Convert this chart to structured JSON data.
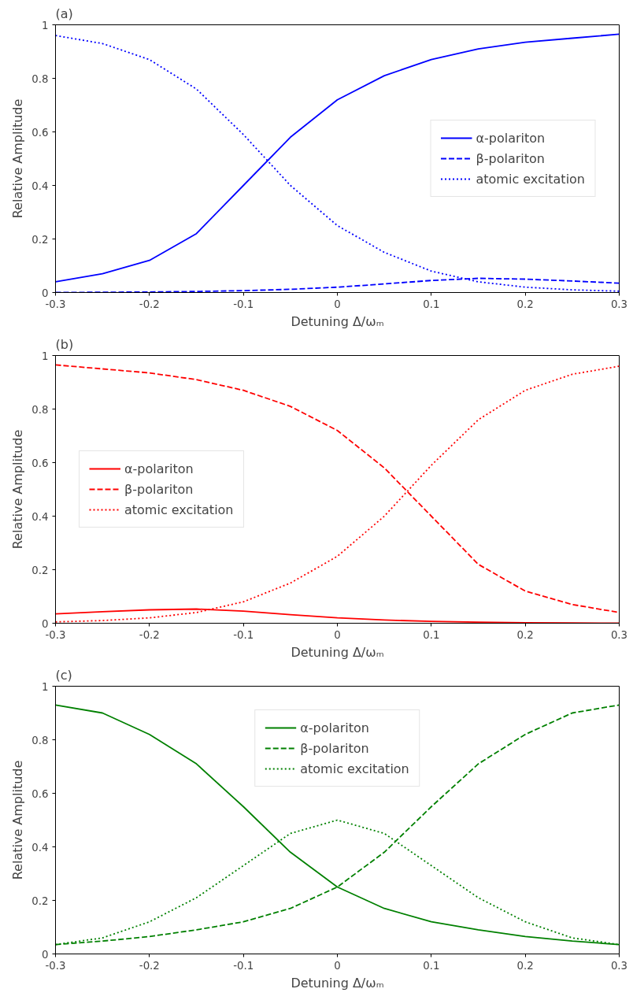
{
  "chart_data": [
    {
      "type": "line",
      "title": "(a)",
      "xlabel": "Detuning Δ/ωₘ",
      "ylabel": "Relative Amplitude",
      "x": [
        -0.3,
        -0.25,
        -0.2,
        -0.15,
        -0.1,
        -0.05,
        0,
        0.05,
        0.1,
        0.15,
        0.2,
        0.25,
        0.3
      ],
      "xlim": [
        -0.3,
        0.3
      ],
      "ylim": [
        0,
        1
      ],
      "xticks": [
        -0.3,
        -0.2,
        -0.1,
        0,
        0.1,
        0.2,
        0.3
      ],
      "yticks": [
        0,
        0.2,
        0.4,
        0.6,
        0.8,
        1
      ],
      "grid": false,
      "legend": "right",
      "series": [
        {
          "name": "α-polariton",
          "color": "#0000ff",
          "line_style": "solid",
          "values": [
            0.04,
            0.07,
            0.12,
            0.22,
            0.4,
            0.58,
            0.72,
            0.81,
            0.87,
            0.91,
            0.935,
            0.95,
            0.965
          ]
        },
        {
          "name": "β-polariton",
          "color": "#0000ff",
          "line_style": "dashed",
          "values": [
            0.0,
            0.001,
            0.002,
            0.004,
            0.007,
            0.012,
            0.02,
            0.032,
            0.045,
            0.053,
            0.05,
            0.043,
            0.035
          ]
        },
        {
          "name": "atomic excitation",
          "color": "#0000ff",
          "line_style": "dotted",
          "values": [
            0.96,
            0.93,
            0.87,
            0.76,
            0.59,
            0.4,
            0.25,
            0.15,
            0.08,
            0.04,
            0.02,
            0.01,
            0.005
          ]
        }
      ]
    },
    {
      "type": "line",
      "title": "(b)",
      "xlabel": "Detuning Δ/ωₘ",
      "ylabel": "Relative Amplitude",
      "x": [
        -0.3,
        -0.25,
        -0.2,
        -0.15,
        -0.1,
        -0.05,
        0,
        0.05,
        0.1,
        0.15,
        0.2,
        0.25,
        0.3
      ],
      "xlim": [
        -0.3,
        0.3
      ],
      "ylim": [
        0,
        1
      ],
      "xticks": [
        -0.3,
        -0.2,
        -0.1,
        0,
        0.1,
        0.2,
        0.3
      ],
      "yticks": [
        0,
        0.2,
        0.4,
        0.6,
        0.8,
        1
      ],
      "grid": false,
      "legend": "left",
      "series": [
        {
          "name": "α-polariton",
          "color": "#ff0000",
          "line_style": "solid",
          "values": [
            0.035,
            0.043,
            0.05,
            0.053,
            0.045,
            0.032,
            0.02,
            0.012,
            0.007,
            0.004,
            0.002,
            0.001,
            0.0
          ]
        },
        {
          "name": "β-polariton",
          "color": "#ff0000",
          "line_style": "dashed",
          "values": [
            0.965,
            0.95,
            0.935,
            0.91,
            0.87,
            0.81,
            0.72,
            0.58,
            0.4,
            0.22,
            0.12,
            0.07,
            0.04
          ]
        },
        {
          "name": "atomic excitation",
          "color": "#ff0000",
          "line_style": "dotted",
          "values": [
            0.005,
            0.01,
            0.02,
            0.04,
            0.08,
            0.15,
            0.25,
            0.4,
            0.59,
            0.76,
            0.87,
            0.93,
            0.96
          ]
        }
      ]
    },
    {
      "type": "line",
      "title": "(c)",
      "xlabel": "Detuning Δ/ωₘ",
      "ylabel": "Relative Amplitude",
      "x": [
        -0.3,
        -0.25,
        -0.2,
        -0.15,
        -0.1,
        -0.05,
        0,
        0.05,
        0.1,
        0.15,
        0.2,
        0.25,
        0.3
      ],
      "xlim": [
        -0.3,
        0.3
      ],
      "ylim": [
        0,
        1
      ],
      "xticks": [
        -0.3,
        -0.2,
        -0.1,
        0,
        0.1,
        0.2,
        0.3
      ],
      "yticks": [
        0,
        0.2,
        0.4,
        0.6,
        0.8,
        1
      ],
      "grid": false,
      "legend": "top",
      "series": [
        {
          "name": "α-polariton",
          "color": "#008000",
          "line_style": "solid",
          "values": [
            0.93,
            0.9,
            0.82,
            0.71,
            0.55,
            0.38,
            0.25,
            0.17,
            0.12,
            0.09,
            0.065,
            0.048,
            0.035
          ]
        },
        {
          "name": "β-polariton",
          "color": "#008000",
          "line_style": "dashed",
          "values": [
            0.035,
            0.048,
            0.065,
            0.09,
            0.12,
            0.17,
            0.25,
            0.38,
            0.55,
            0.71,
            0.82,
            0.9,
            0.93
          ]
        },
        {
          "name": "atomic excitation",
          "color": "#008000",
          "line_style": "dotted",
          "values": [
            0.035,
            0.06,
            0.12,
            0.21,
            0.33,
            0.45,
            0.5,
            0.45,
            0.33,
            0.21,
            0.12,
            0.06,
            0.035
          ]
        }
      ]
    }
  ]
}
